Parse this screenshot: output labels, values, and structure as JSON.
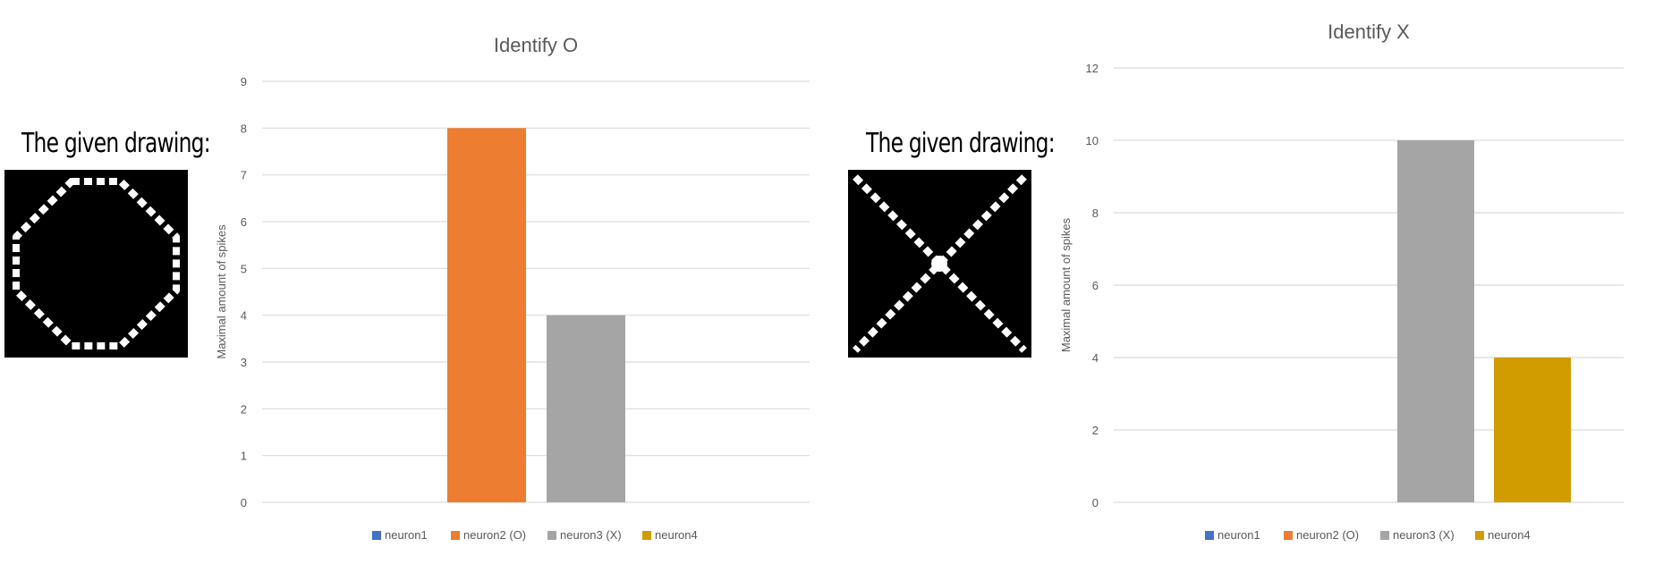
{
  "drawings": [
    {
      "label": "The given drawing:",
      "shape": "octagon"
    },
    {
      "label": "The given drawing:",
      "shape": "x-cross"
    }
  ],
  "colors": {
    "neuron1": "#4472C4",
    "neuron2": "#ED7D31",
    "neuron3": "#A5A5A5",
    "neuron4": "#D19C00",
    "grid": "#d9d9d9",
    "text": "#595959"
  },
  "chart_data": [
    {
      "type": "bar",
      "title": "Identify O",
      "ylabel": "Maximal amount of spikes",
      "xlabel": "",
      "ylim": [
        0,
        9
      ],
      "yticks": [
        0,
        1,
        2,
        3,
        4,
        5,
        6,
        7,
        8,
        9
      ],
      "grid": true,
      "legend": "bottom",
      "series": [
        {
          "name": "neuron1",
          "values": [
            0
          ]
        },
        {
          "name": "neuron2 (O)",
          "values": [
            8
          ]
        },
        {
          "name": "neuron3 (X)",
          "values": [
            4
          ]
        },
        {
          "name": "neuron4",
          "values": [
            0
          ]
        }
      ]
    },
    {
      "type": "bar",
      "title": "Identify X",
      "ylabel": "Maximal amount of spikes",
      "xlabel": "",
      "ylim": [
        0,
        12
      ],
      "yticks": [
        0,
        2,
        4,
        6,
        8,
        10,
        12
      ],
      "grid": true,
      "legend": "bottom",
      "series": [
        {
          "name": "neuron1",
          "values": [
            0
          ]
        },
        {
          "name": "neuron2 (O)",
          "values": [
            0
          ]
        },
        {
          "name": "neuron3 (X)",
          "values": [
            10
          ]
        },
        {
          "name": "neuron4",
          "values": [
            4
          ]
        }
      ]
    }
  ]
}
